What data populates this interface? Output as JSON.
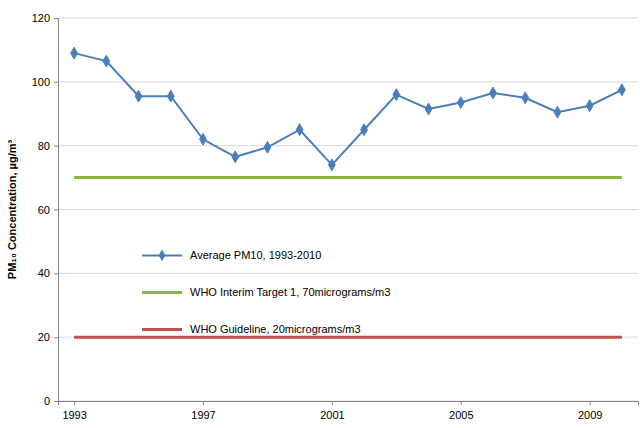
{
  "chart_data": {
    "type": "line",
    "y_label": "PM₁₀ Concentration, µg/m³",
    "x": [
      1993,
      1994,
      1995,
      1996,
      1997,
      1998,
      1999,
      2000,
      2001,
      2002,
      2003,
      2004,
      2005,
      2006,
      2007,
      2008,
      2009,
      2010
    ],
    "series": [
      {
        "name": "Average PM10, 1993-2010",
        "color": "#4a7ebb",
        "marker": "diamond",
        "values": [
          109,
          106.5,
          95.5,
          95.5,
          82,
          76.5,
          79.5,
          85,
          74,
          85,
          96,
          91.5,
          93.5,
          96.5,
          95,
          90.5,
          92.5,
          97.5
        ]
      },
      {
        "name": "WHO Interim Target 1, 70micrograms/m3",
        "color": "#8db33f",
        "marker": "none",
        "values": [
          70,
          70,
          70,
          70,
          70,
          70,
          70,
          70,
          70,
          70,
          70,
          70,
          70,
          70,
          70,
          70,
          70,
          70
        ]
      },
      {
        "name": "WHO Guideline, 20micrograms/m3",
        "color": "#c0504d",
        "marker": "none",
        "values": [
          20,
          20,
          20,
          20,
          20,
          20,
          20,
          20,
          20,
          20,
          20,
          20,
          20,
          20,
          20,
          20,
          20,
          20
        ]
      }
    ],
    "xlim": [
      1992.5,
      2010.5
    ],
    "xticks": [
      1993,
      1997,
      2001,
      2005,
      2009
    ],
    "ylim": [
      0,
      120
    ],
    "yticks": [
      0,
      20,
      40,
      60,
      80,
      100,
      120
    ],
    "grid": true,
    "legend": "center left"
  }
}
